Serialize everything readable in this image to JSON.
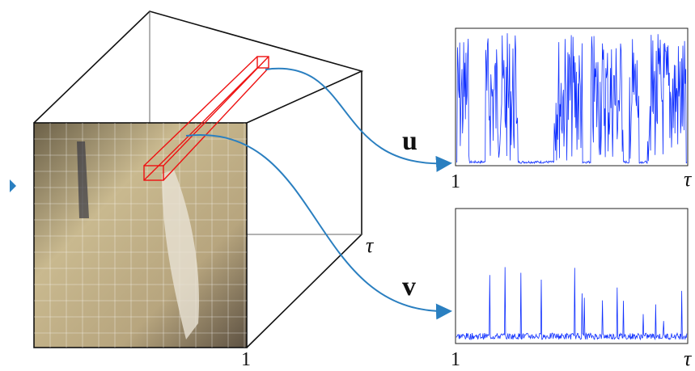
{
  "cube": {
    "depth_label": "τ",
    "frame_label": "1"
  },
  "plots": [
    {
      "label": "u",
      "x_start": "1",
      "x_end": "τ"
    },
    {
      "label": "v",
      "x_start": "1",
      "x_end": "τ"
    }
  ]
}
